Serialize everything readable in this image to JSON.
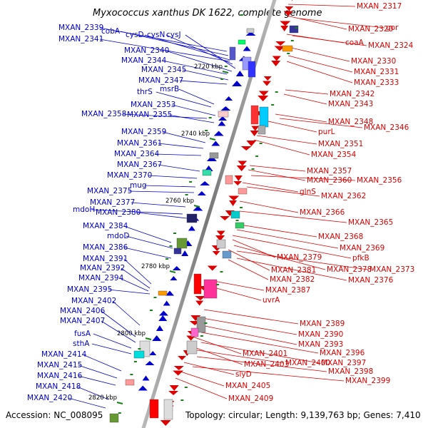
{
  "title": "Myxococcus xanthus DK 1622, complete genome",
  "footer": {
    "accession": "Accession: NC_008095",
    "topology": "Topology: circular; Length: 9,139,763 bp; Genes: 7,410"
  },
  "colors": {
    "left_strand": "#0000cc",
    "right_strand": "#dd0000",
    "kbp_tick": "#1a7f1a",
    "axis": "#999999"
  },
  "kbp_marks": [
    "2720 kbp",
    "2740 kbp",
    "2760 kbp",
    "2780 kbp",
    "2800 kbp",
    "2820 kbp"
  ],
  "left_labels": [
    "MXAN_2339",
    "cobA",
    "cysD",
    "cysN",
    "cysJ",
    "MXAN_2341",
    "MXAN_2340",
    "MXAN_2344",
    "MXAN_2345",
    "MXAN_2347",
    "msrB",
    "thrS",
    "MXAN_2353",
    "MXAN_2358",
    "MXAN_2355",
    "MXAN_2359",
    "MXAN_2361",
    "MXAN_2364",
    "MXAN_2367",
    "MXAN_2370",
    "mug",
    "MXAN_2375",
    "MXAN_2377",
    "mdoH",
    "MXAN_2380",
    "MXAN_2384",
    "mdoD",
    "MXAN_2386",
    "MXAN_2391",
    "MXAN_2392",
    "MXAN_2394",
    "MXAN_2395",
    "MXAN_2402",
    "MXAN_2406",
    "MXAN_2407",
    "fusA",
    "sthA",
    "MXAN_2414",
    "MXAN_2415",
    "MXAN_2416",
    "MXAN_2418",
    "MXAN_2420"
  ],
  "right_labels": [
    "MXAN_2317",
    "MXAN_2320",
    "gor",
    "coaA",
    "MXAN_2324",
    "MXAN_2330",
    "MXAN_2331",
    "MXAN_2333",
    "MXAN_2342",
    "MXAN_2343",
    "MXAN_2348",
    "MXAN_2346",
    "purL",
    "MXAN_2351",
    "MXAN_2354",
    "MXAN_2357",
    "MXAN_2360",
    "MXAN_2356",
    "glnS",
    "MXAN_2362",
    "MXAN_2366",
    "MXAN_2365",
    "MXAN_2368",
    "MXAN_2369",
    "pfkB",
    "MXAN_2379",
    "MXAN_2378",
    "MXAN_2373",
    "MXAN_2381",
    "MXAN_2376",
    "MXAN_2382",
    "MXAN_2387",
    "uvrA",
    "MXAN_2389",
    "MXAN_2390",
    "MXAN_2393",
    "MXAN_2396",
    "MXAN_2401",
    "MXAN_2397",
    "MXAN_2403",
    "MXAN_2400",
    "MXAN_2398",
    "slyD",
    "MXAN_2399",
    "MXAN_2405",
    "MXAN_2409"
  ]
}
